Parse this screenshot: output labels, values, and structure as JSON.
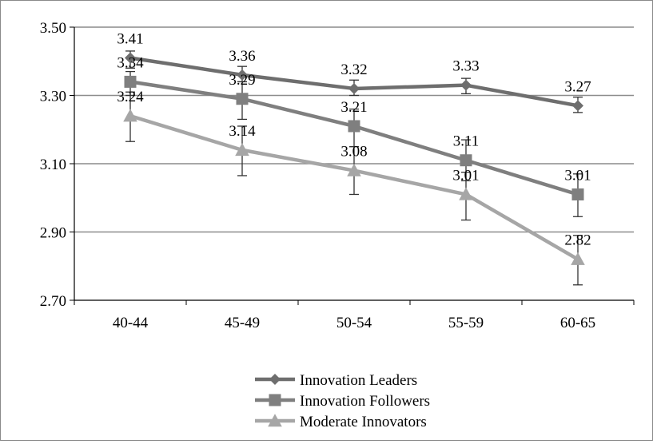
{
  "chart_data": {
    "type": "line",
    "categories": [
      "40-44",
      "45-49",
      "50-54",
      "55-59",
      "60-65"
    ],
    "yticks": [
      "2.70",
      "2.90",
      "3.10",
      "3.30",
      "3.50"
    ],
    "ylim": [
      2.7,
      3.5
    ],
    "grid": true,
    "legend_position": "bottom",
    "error_bars": true,
    "series": [
      {
        "name": "Innovation Leaders",
        "marker": "diamond",
        "color": "#6e6e6e",
        "values": [
          3.41,
          3.36,
          3.32,
          3.33,
          3.27
        ],
        "labels": [
          "3.41",
          "3.36",
          "3.32",
          "3.33",
          "3.27"
        ],
        "error_low": [
          3.38,
          3.34,
          3.3,
          3.305,
          3.25
        ],
        "error_high": [
          3.43,
          3.385,
          3.345,
          3.35,
          3.295
        ]
      },
      {
        "name": "Innovation Followers",
        "marker": "square",
        "color": "#7f7f7f",
        "values": [
          3.34,
          3.29,
          3.21,
          3.11,
          3.01
        ],
        "labels": [
          "3.34",
          "3.29",
          "3.21",
          "3.11",
          "3.01"
        ],
        "error_low": [
          3.3,
          3.23,
          3.15,
          3.05,
          2.945
        ],
        "error_high": [
          3.37,
          3.34,
          3.26,
          3.17,
          3.07
        ]
      },
      {
        "name": "Moderate Innovators",
        "marker": "triangle",
        "color": "#a6a6a6",
        "values": [
          3.24,
          3.14,
          3.08,
          3.01,
          2.82
        ],
        "labels": [
          "3.24",
          "3.14",
          "3.08",
          "3.01",
          "2.82"
        ],
        "error_low": [
          3.165,
          3.065,
          3.01,
          2.935,
          2.745
        ],
        "error_high": [
          3.31,
          3.21,
          3.15,
          3.075,
          2.89
        ]
      }
    ]
  }
}
